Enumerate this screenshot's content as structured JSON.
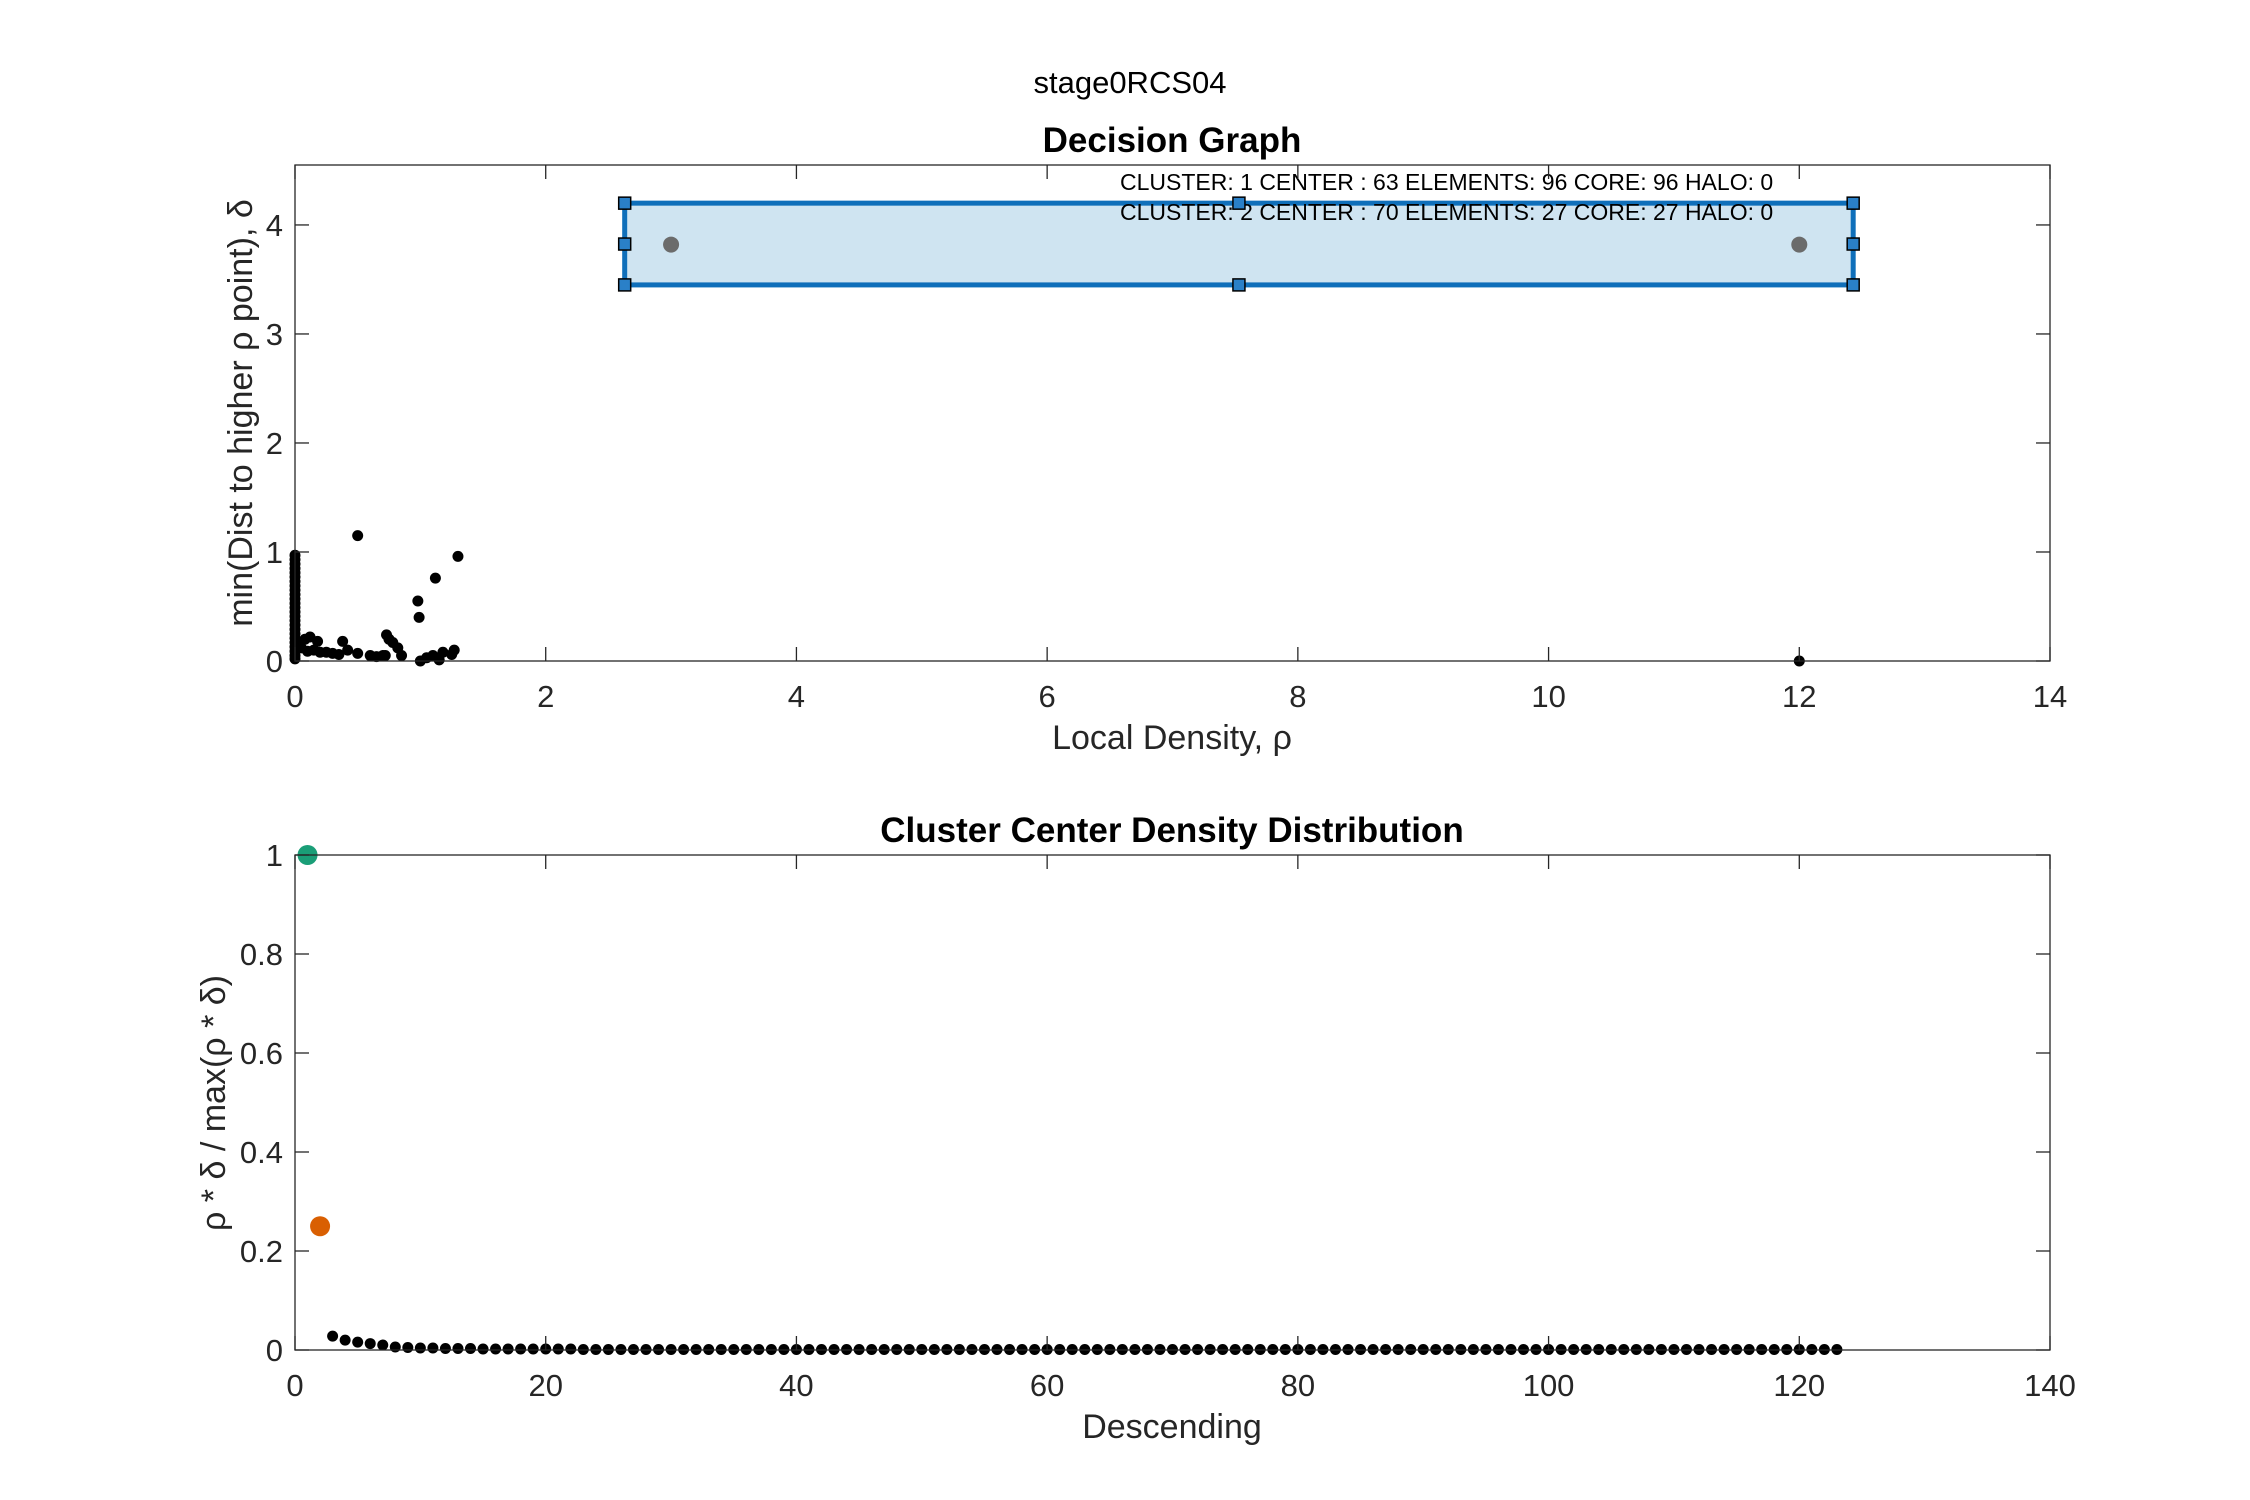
{
  "figure_title": "stage0RCS04",
  "colors": {
    "points": "#000000",
    "selection_fill": "#cfe4f1",
    "selection_edge": "#0f6fba",
    "center_marker": "#6b6b6b",
    "cluster1": "#1a9e77",
    "cluster2": "#d95f02"
  },
  "chart_data": [
    {
      "type": "scatter",
      "title": "Decision Graph",
      "xlabel": "Local Density, ρ",
      "ylabel": "min(Dist to higher ρ point), δ",
      "xlim": [
        0,
        14
      ],
      "ylim": [
        0,
        4.55
      ],
      "xticks": [
        0,
        2,
        4,
        6,
        8,
        10,
        12,
        14
      ],
      "yticks": [
        0,
        1,
        2,
        3,
        4
      ],
      "grid": false,
      "annotations": [
        "CLUSTER: 1 CENTER : 63 ELEMENTS: 96 CORE: 96 HALO: 0",
        "CLUSTER: 2 CENTER : 70 ELEMENTS: 27 CORE: 27 HALO: 0"
      ],
      "selection_rectangle": {
        "x": [
          2.63,
          12.43
        ],
        "y": [
          3.45,
          4.2
        ]
      },
      "cluster_centers": [
        {
          "x": 3.0,
          "y": 3.82
        },
        {
          "x": 12.0,
          "y": 3.82
        }
      ],
      "points": [
        [
          0,
          0.97
        ],
        [
          0,
          0.93
        ],
        [
          0,
          0.89
        ],
        [
          0,
          0.85
        ],
        [
          0,
          0.81
        ],
        [
          0,
          0.77
        ],
        [
          0,
          0.73
        ],
        [
          0,
          0.69
        ],
        [
          0,
          0.65
        ],
        [
          0,
          0.61
        ],
        [
          0,
          0.57
        ],
        [
          0,
          0.53
        ],
        [
          0,
          0.49
        ],
        [
          0,
          0.45
        ],
        [
          0,
          0.41
        ],
        [
          0,
          0.37
        ],
        [
          0,
          0.33
        ],
        [
          0,
          0.29
        ],
        [
          0,
          0.25
        ],
        [
          0,
          0.21
        ],
        [
          0,
          0.17
        ],
        [
          0,
          0.13
        ],
        [
          0,
          0.09
        ],
        [
          0,
          0.05
        ],
        [
          0,
          0.02
        ],
        [
          0.03,
          0.16
        ],
        [
          0.05,
          0.12
        ],
        [
          0.08,
          0.2
        ],
        [
          0.1,
          0.09
        ],
        [
          0.12,
          0.22
        ],
        [
          0.15,
          0.1
        ],
        [
          0.18,
          0.18
        ],
        [
          0.2,
          0.08
        ],
        [
          0.25,
          0.08
        ],
        [
          0.3,
          0.07
        ],
        [
          0.35,
          0.06
        ],
        [
          0.38,
          0.18
        ],
        [
          0.42,
          0.1
        ],
        [
          0.5,
          0.07
        ],
        [
          0.5,
          1.15
        ],
        [
          0.6,
          0.05
        ],
        [
          0.65,
          0.04
        ],
        [
          0.7,
          0.05
        ],
        [
          0.72,
          0.05
        ],
        [
          0.73,
          0.24
        ],
        [
          0.75,
          0.2
        ],
        [
          0.78,
          0.17
        ],
        [
          0.82,
          0.12
        ],
        [
          0.85,
          0.05
        ],
        [
          0.98,
          0.55
        ],
        [
          0.99,
          0.4
        ],
        [
          1.0,
          0.0
        ],
        [
          1.05,
          0.03
        ],
        [
          1.1,
          0.05
        ],
        [
          1.12,
          0.76
        ],
        [
          1.15,
          0.01
        ],
        [
          1.18,
          0.08
        ],
        [
          1.25,
          0.06
        ],
        [
          1.27,
          0.1
        ],
        [
          1.3,
          0.96
        ],
        [
          12.0,
          0.0
        ]
      ]
    },
    {
      "type": "scatter",
      "title": "Cluster Center Density Distribution",
      "xlabel": "Descending",
      "ylabel": "ρ * δ / max(ρ * δ)",
      "xlim": [
        0,
        140
      ],
      "ylim": [
        0,
        1
      ],
      "xticks": [
        0,
        20,
        40,
        60,
        80,
        100,
        120,
        140
      ],
      "yticks": [
        0,
        0.2,
        0.4,
        0.6,
        0.8,
        1
      ],
      "ytick_labels": [
        "0",
        "0.2",
        "0.4",
        "0.6",
        "0.8",
        "1"
      ],
      "grid": false,
      "highlighted": [
        {
          "x": 1,
          "y": 1.0,
          "color": "#1a9e77"
        },
        {
          "x": 2,
          "y": 0.25,
          "color": "#d95f02"
        }
      ],
      "series": [
        {
          "x_start": 3,
          "values": [
            0.028,
            0.02,
            0.016,
            0.013,
            0.01,
            0.006,
            0.005,
            0.004,
            0.004,
            0.003,
            0.003,
            0.003,
            0.002,
            0.002,
            0.002,
            0.002,
            0.002,
            0.002,
            0.002,
            0.002,
            0.001,
            0.001,
            0.001,
            0.001,
            0.001,
            0.001,
            0.001,
            0.001,
            0.001,
            0.001,
            0.001,
            0.001,
            0.001,
            0.001,
            0.001,
            0.001,
            0.001,
            0.001,
            0.001,
            0.001,
            0.001,
            0.001,
            0.001,
            0.001,
            0.001,
            0.001,
            0.001,
            0.001,
            0.001,
            0.001,
            0.001,
            0.001,
            0.001,
            0.001,
            0.001,
            0.001,
            0.001,
            0.001,
            0.001,
            0.001,
            0.001,
            0.001,
            0.001,
            0.001,
            0.001,
            0.001,
            0.001,
            0.001,
            0.001,
            0.001,
            0.001,
            0.001,
            0.001,
            0.001,
            0.001,
            0.001,
            0.001,
            0.001,
            0.001,
            0.001,
            0.001,
            0.001,
            0.001,
            0.001,
            0.001,
            0.001,
            0.001,
            0.001,
            0.001,
            0.001,
            0.001,
            0.001,
            0.001,
            0.001,
            0.001,
            0.001,
            0.001,
            0.001,
            0.001,
            0.001,
            0.001,
            0.001,
            0.001,
            0.001,
            0.001,
            0.001,
            0.001,
            0.001,
            0.001,
            0.001,
            0.001,
            0.001,
            0.001,
            0.001,
            0.001,
            0.001,
            0.001,
            0.001,
            0.001,
            0.001,
            0.001
          ]
        }
      ]
    }
  ]
}
